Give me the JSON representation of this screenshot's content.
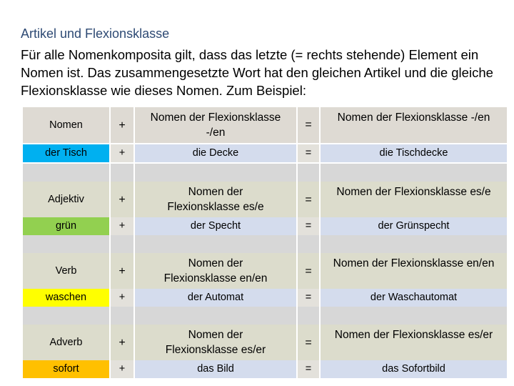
{
  "title": "Artikel und Flexionsklasse",
  "intro": "Für alle Nomenkomposita gilt, dass das letzte (= rechts stehende) Element ein Nomen ist. Das zusammengesetzte Wort hat den gleichen Artikel und die gleiche Flexionsklasse wie dieses Nomen. Zum Beispiel:",
  "colors": {
    "nomen_example": "#00b0f0",
    "adjektiv_example": "#92d050",
    "verb_example": "#ffff00",
    "adverb_example": "#ffc000"
  },
  "groups": [
    {
      "category": "Nomen",
      "plus": "+",
      "class_label": "Nomen der Flexionsklasse -/en",
      "equals": "=",
      "result_class": "Nomen der Flexionsklasse -/en",
      "example_first": "der Tisch",
      "example_plus": "+",
      "example_second": "die Decke",
      "example_equals": "=",
      "example_result": "die Tischdecke"
    },
    {
      "category": "Adjektiv",
      "plus": "+",
      "class_label": "Nomen der Flexionsklasse es/e",
      "equals": "=",
      "result_class": "Nomen der Flexionsklasse es/e",
      "example_first": "grün",
      "example_plus": "+",
      "example_second": "der Specht",
      "example_equals": "=",
      "example_result": "der Grünspecht"
    },
    {
      "category": "Verb",
      "plus": "+",
      "class_label": "Nomen der Flexionsklasse en/en",
      "equals": "=",
      "result_class": "Nomen der Flexionsklasse en/en",
      "example_first": "waschen",
      "example_plus": "+",
      "example_second": "der Automat",
      "example_equals": "=",
      "example_result": "der Waschautomat"
    },
    {
      "category": "Adverb",
      "plus": "+",
      "class_label": "Nomen der Flexionsklasse es/er",
      "equals": "=",
      "result_class": "Nomen der Flexionsklasse es/er",
      "example_first": "sofort",
      "example_plus": "+",
      "example_second": "das Bild",
      "example_equals": "=",
      "example_result": "das Sofortbild"
    }
  ]
}
